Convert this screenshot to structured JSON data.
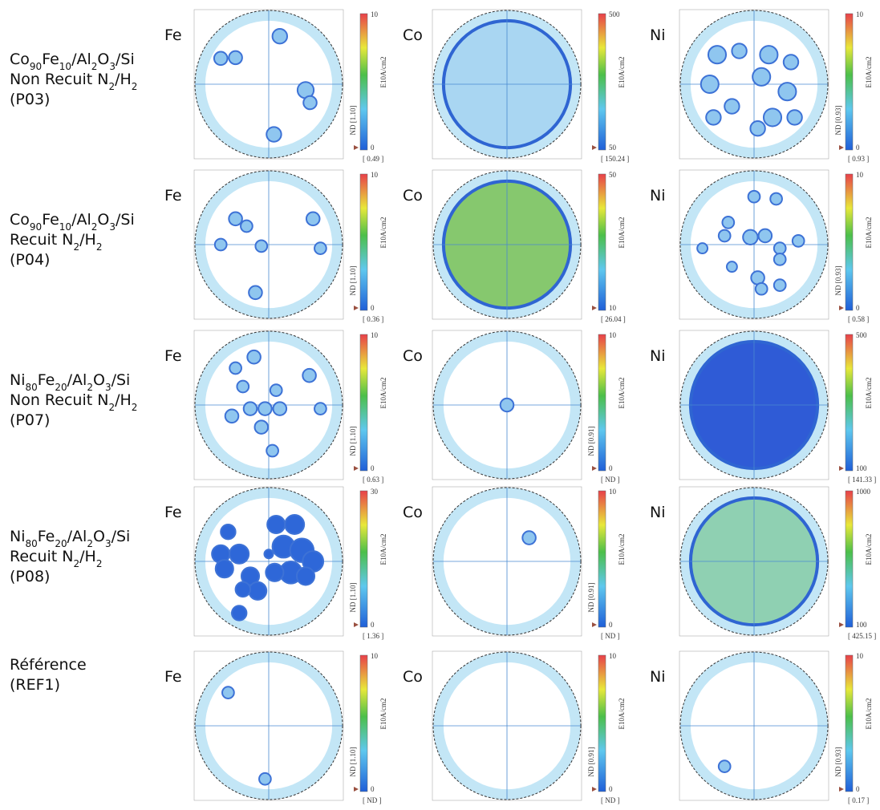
{
  "rows": [
    {
      "label": [
        [
          "Co",
          "90",
          "Fe",
          "10",
          "/Al",
          "2",
          "O",
          "3",
          "/Si"
        ],
        [
          "Non Recuit N",
          "2",
          "/H",
          "2"
        ],
        [
          "(P03)"
        ]
      ],
      "panels": [
        {
          "element": "Fe",
          "max": "10",
          "min": "0",
          "unit": "E10A/cm2",
          "nd": "ND [1.10]",
          "bottom": "[ 0.49 ]"
        },
        {
          "element": "Co",
          "max": "500",
          "min": "50",
          "unit": "E10A/cm2",
          "bottom": "[ 150.24 ]"
        },
        {
          "element": "Ni",
          "max": "10",
          "min": "0",
          "unit": "E10A/cm2",
          "nd": "ND [0.93]",
          "bottom": "[ 0.93 ]"
        }
      ]
    },
    {
      "label": [
        [
          "Co",
          "90",
          "Fe",
          "10",
          "/Al",
          "2",
          "O",
          "3",
          "/Si"
        ],
        [
          "Recuit N",
          "2",
          "/H",
          "2"
        ],
        [
          "(P04)"
        ]
      ],
      "panels": [
        {
          "element": "Fe",
          "max": "10",
          "min": "0",
          "unit": "E10A/cm2",
          "nd": "ND [1.10]",
          "bottom": "[ 0.36 ]"
        },
        {
          "element": "Co",
          "max": "50",
          "min": "10",
          "unit": "E10A/cm2",
          "bottom": "[ 26.04 ]"
        },
        {
          "element": "Ni",
          "max": "10",
          "min": "0",
          "unit": "E10A/cm2",
          "nd": "ND [0.93]",
          "bottom": "[ 0.58 ]"
        }
      ]
    },
    {
      "label": [
        [
          "Ni",
          "80",
          "Fe",
          "20",
          "/Al",
          "2",
          "O",
          "3",
          "/Si"
        ],
        [
          "Non Recuit N",
          "2",
          "/H",
          "2"
        ],
        [
          "(P07)"
        ]
      ],
      "panels": [
        {
          "element": "Fe",
          "max": "10",
          "min": "0",
          "unit": "E10A/cm2",
          "nd": "ND [1.10]",
          "bottom": "[ 0.63 ]"
        },
        {
          "element": "Co",
          "max": "10",
          "min": "0",
          "unit": "E10A/cm2",
          "nd": "ND [0.91]",
          "bottom": "[ ND ]"
        },
        {
          "element": "Ni",
          "max": "500",
          "min": "100",
          "unit": "E10A/cm2",
          "bottom": "[ 141.33 ]"
        }
      ]
    },
    {
      "label": [
        [
          "Ni",
          "80",
          "Fe",
          "20",
          "/Al",
          "2",
          "O",
          "3",
          "/Si"
        ],
        [
          "Recuit N",
          "2",
          "/H",
          "2"
        ],
        [
          "(P08)"
        ]
      ],
      "panels": [
        {
          "element": "Fe",
          "max": "30",
          "min": "0",
          "unit": "E10A/cm2",
          "nd": "ND [1.10]",
          "bottom": "[ 1.36 ]"
        },
        {
          "element": "Co",
          "max": "10",
          "min": "0",
          "unit": "E10A/cm2",
          "nd": "ND [0.91]",
          "bottom": "[ ND ]"
        },
        {
          "element": "Ni",
          "max": "1000",
          "min": "100",
          "unit": "E10A/cm2",
          "bottom": "[ 425.15 ]"
        }
      ]
    },
    {
      "label": [
        [
          "Référence"
        ],
        [
          "(REF1)"
        ]
      ],
      "panels": [
        {
          "element": "Fe",
          "max": "10",
          "min": "0",
          "unit": "E10A/cm2",
          "nd": "ND [1.10]",
          "bottom": "[ ND ]"
        },
        {
          "element": "Co",
          "max": "10",
          "min": "0",
          "unit": "E10A/cm2",
          "nd": "ND [0.91]",
          "bottom": "[ ND ]"
        },
        {
          "element": "Ni",
          "max": "10",
          "min": "0",
          "unit": "E10A/cm2",
          "nd": "ND [0.93]",
          "bottom": "[ 0.17 ]"
        }
      ]
    }
  ]
}
